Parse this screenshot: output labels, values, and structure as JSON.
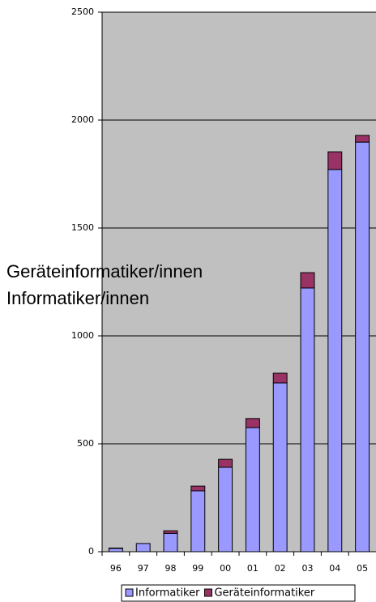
{
  "chart_data": {
    "type": "stacked_bar",
    "categories": [
      "96",
      "97",
      "98",
      "99",
      "00",
      "01",
      "02",
      "03",
      "04",
      "05"
    ],
    "series": [
      {
        "name": "Informatiker",
        "color": "#9999ff",
        "values": [
          15,
          38,
          85,
          282,
          391,
          575,
          782,
          1222,
          1771,
          1898
        ]
      },
      {
        "name": "Geräteinformatiker",
        "color": "#993366",
        "values": [
          2,
          0,
          12,
          22,
          37,
          42,
          45,
          71,
          82,
          31
        ]
      }
    ],
    "ylim": [
      0,
      2500
    ],
    "yticks": [
      0,
      500,
      1000,
      1500,
      2000,
      2500
    ],
    "grid": true,
    "annotations": [
      "Geräteinformatiker/innen",
      "Informatiker/innen"
    ]
  }
}
